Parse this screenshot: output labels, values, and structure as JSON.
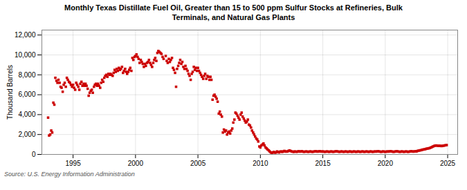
{
  "chart_data": {
    "type": "scatter",
    "title": "Monthly Texas Distillate Fuel Oil, Greater than 15 to 500 ppm Sulfur Stocks at Refineries, Bulk\nTerminals, and Natural Gas Plants",
    "ylabel": "Thousand Barrels",
    "source": "Source: U.S. Energy Information Administration",
    "color": "#cc0000",
    "marker": "square",
    "grid": true,
    "xlim": [
      1992.5,
      2025.8
    ],
    "ylim": [
      0,
      12500
    ],
    "xticks": [
      1995,
      2000,
      2005,
      2010,
      2015,
      2020,
      2025
    ],
    "yticks": [
      0,
      {
        "value": 2000,
        "label": "2,000"
      },
      {
        "value": 4000,
        "label": "4,000"
      },
      {
        "value": 6000,
        "label": "6,000"
      },
      {
        "value": 8000,
        "label": "8,000"
      },
      {
        "value": 10000,
        "label": "10,000"
      },
      {
        "value": 12000,
        "label": "12,000"
      }
    ],
    "x": [
      1993.0,
      1993.08,
      1993.17,
      1993.25,
      1993.33,
      1993.42,
      1993.5,
      1993.58,
      1993.67,
      1993.75,
      1993.83,
      1993.92,
      1994.0,
      1994.08,
      1994.17,
      1994.25,
      1994.33,
      1994.42,
      1994.5,
      1994.58,
      1994.67,
      1994.75,
      1994.83,
      1994.92,
      1995.0,
      1995.08,
      1995.17,
      1995.25,
      1995.33,
      1995.42,
      1995.5,
      1995.58,
      1995.67,
      1995.75,
      1995.83,
      1995.92,
      1996.0,
      1996.08,
      1996.17,
      1996.25,
      1996.33,
      1996.42,
      1996.5,
      1996.58,
      1996.67,
      1996.75,
      1996.83,
      1996.92,
      1997.0,
      1997.08,
      1997.17,
      1997.25,
      1997.33,
      1997.42,
      1997.5,
      1997.58,
      1997.67,
      1997.75,
      1997.83,
      1997.92,
      1998.0,
      1998.08,
      1998.17,
      1998.25,
      1998.33,
      1998.42,
      1998.5,
      1998.58,
      1998.67,
      1998.75,
      1998.83,
      1998.92,
      1999.0,
      1999.08,
      1999.17,
      1999.25,
      1999.33,
      1999.42,
      1999.5,
      1999.58,
      1999.67,
      1999.75,
      1999.83,
      1999.92,
      2000.0,
      2000.08,
      2000.17,
      2000.25,
      2000.33,
      2000.42,
      2000.5,
      2000.58,
      2000.67,
      2000.75,
      2000.83,
      2000.92,
      2001.0,
      2001.08,
      2001.17,
      2001.25,
      2001.33,
      2001.42,
      2001.5,
      2001.58,
      2001.67,
      2001.75,
      2001.83,
      2001.92,
      2002.0,
      2002.08,
      2002.17,
      2002.25,
      2002.42,
      2002.5,
      2002.58,
      2002.67,
      2002.75,
      2002.83,
      2002.92,
      2003.0,
      2003.08,
      2003.17,
      2003.25,
      2003.33,
      2003.42,
      2003.5,
      2003.58,
      2003.67,
      2003.75,
      2003.83,
      2003.92,
      2004.0,
      2004.08,
      2004.17,
      2004.25,
      2004.33,
      2004.42,
      2004.5,
      2004.58,
      2004.67,
      2004.75,
      2004.83,
      2004.92,
      2005.0,
      2005.08,
      2005.17,
      2005.25,
      2005.33,
      2005.42,
      2005.5,
      2005.58,
      2005.67,
      2005.75,
      2005.83,
      2005.92,
      2006.0,
      2006.08,
      2006.17,
      2006.25,
      2006.33,
      2006.42,
      2006.5,
      2006.58,
      2006.67,
      2006.75,
      2006.83,
      2006.92,
      2007.0,
      2007.08,
      2007.17,
      2007.25,
      2007.33,
      2007.42,
      2007.5,
      2007.58,
      2007.67,
      2007.75,
      2007.83,
      2007.92,
      2008.0,
      2008.08,
      2008.17,
      2008.25,
      2008.33,
      2008.42,
      2008.5,
      2008.58,
      2008.67,
      2008.75,
      2008.83,
      2008.92,
      2009.0,
      2009.08,
      2009.17,
      2009.25,
      2009.33,
      2009.42,
      2009.5,
      2009.58,
      2009.67,
      2009.75,
      2009.83,
      2009.92,
      2010.0,
      2010.08,
      2010.17,
      2010.25,
      2010.33,
      2010.42,
      2010.5,
      2010.58,
      2010.67,
      2010.75,
      2010.83,
      2010.92,
      2011.0,
      2011.08,
      2011.17,
      2011.25,
      2011.33,
      2011.42,
      2011.5,
      2011.58,
      2011.67,
      2011.75,
      2011.83,
      2011.92,
      2012.0,
      2012.08,
      2012.17,
      2012.25,
      2012.33,
      2012.42,
      2012.5,
      2012.58,
      2012.67,
      2012.75,
      2012.83,
      2012.92,
      2013.0,
      2013.08,
      2013.17,
      2013.25,
      2013.33,
      2013.42,
      2013.5,
      2013.58,
      2013.67,
      2013.75,
      2013.83,
      2013.92,
      2014.0,
      2014.08,
      2014.17,
      2014.25,
      2014.33,
      2014.42,
      2014.5,
      2014.58,
      2014.67,
      2014.75,
      2014.83,
      2014.92,
      2015.0,
      2015.08,
      2015.17,
      2015.25,
      2015.33,
      2015.42,
      2015.5,
      2015.58,
      2015.67,
      2015.75,
      2015.83,
      2015.92,
      2016.0,
      2016.08,
      2016.17,
      2016.25,
      2016.33,
      2016.42,
      2016.5,
      2016.58,
      2016.67,
      2016.75,
      2016.83,
      2016.92,
      2017.0,
      2017.08,
      2017.17,
      2017.25,
      2017.33,
      2017.42,
      2017.5,
      2017.58,
      2017.67,
      2017.75,
      2017.83,
      2017.92,
      2018.0,
      2018.08,
      2018.17,
      2018.25,
      2018.33,
      2018.42,
      2018.5,
      2018.58,
      2018.67,
      2018.75,
      2018.83,
      2018.92,
      2019.0,
      2019.08,
      2019.17,
      2019.25,
      2019.33,
      2019.42,
      2019.5,
      2019.58,
      2019.67,
      2019.75,
      2019.83,
      2019.92,
      2020.0,
      2020.08,
      2020.17,
      2020.25,
      2020.33,
      2020.42,
      2020.5,
      2020.58,
      2020.67,
      2020.75,
      2020.83,
      2020.92,
      2021.0,
      2021.08,
      2021.17,
      2021.25,
      2021.33,
      2021.42,
      2021.5,
      2021.58,
      2021.67,
      2021.75,
      2021.83,
      2021.92,
      2022.0,
      2022.08,
      2022.17,
      2022.25,
      2022.33,
      2022.42,
      2022.5,
      2022.58,
      2022.67,
      2022.75,
      2022.83,
      2022.92,
      2023.0,
      2023.08,
      2023.17,
      2023.25,
      2023.33,
      2023.42,
      2023.5,
      2023.58,
      2023.67,
      2023.75,
      2023.83,
      2023.92,
      2024.0,
      2024.08,
      2024.17,
      2024.25,
      2024.33,
      2024.42,
      2024.5,
      2024.58,
      2024.67,
      2024.75,
      2024.83,
      2024.92
    ],
    "values": [
      3700,
      1900,
      2000,
      2400,
      2200,
      5200,
      5000,
      7700,
      7400,
      7200,
      7500,
      7200,
      6800,
      6700,
      6300,
      7000,
      7200,
      6800,
      7700,
      7500,
      7300,
      7200,
      7000,
      6800,
      7000,
      6700,
      6500,
      7200,
      7000,
      6800,
      6500,
      7100,
      7300,
      6900,
      7100,
      6900,
      7100,
      6900,
      6600,
      5900,
      6200,
      6400,
      6500,
      6200,
      6800,
      7000,
      7100,
      6900,
      7100,
      6900,
      6700,
      7200,
      7500,
      7300,
      7700,
      7900,
      8000,
      7800,
      8100,
      8000,
      8100,
      8000,
      7900,
      8200,
      8500,
      8300,
      8600,
      8400,
      8700,
      8500,
      8600,
      8800,
      8200,
      8400,
      8600,
      8300,
      8100,
      8300,
      8500,
      8700,
      8400,
      9700,
      9500,
      9800,
      9900,
      10050,
      9800,
      9600,
      9200,
      9500,
      9300,
      9100,
      8800,
      9100,
      8900,
      9200,
      9300,
      9500,
      9200,
      9000,
      8800,
      9200,
      9500,
      9700,
      9400,
      10200,
      10400,
      10300,
      10200,
      10100,
      9800,
      9600,
      9900,
      9400,
      9200,
      9600,
      9300,
      9500,
      9700,
      8700,
      8500,
      8200,
      6800,
      8600,
      8900,
      9200,
      9500,
      9100,
      9300,
      8800,
      8600,
      8900,
      8600,
      8400,
      8100,
      7900,
      7500,
      8100,
      8300,
      8800,
      8500,
      8700,
      8400,
      8700,
      8400,
      8200,
      8000,
      7800,
      7600,
      7900,
      8100,
      7600,
      7900,
      7800,
      7500,
      7800,
      7500,
      5500,
      5900,
      6000,
      5800,
      5600,
      5300,
      4100,
      4300,
      4000,
      3800,
      2200,
      2500,
      2300,
      2400,
      2000,
      2200,
      2300,
      2100,
      2400,
      2600,
      3200,
      3500,
      4200,
      4100,
      3900,
      3700,
      3500,
      4000,
      4200,
      3800,
      3600,
      3400,
      3200,
      3300,
      3500,
      3000,
      2900,
      2700,
      2400,
      2200,
      2000,
      1800,
      1600,
      1500,
      1300,
      800,
      700,
      900,
      1000,
      1100,
      900,
      700,
      600,
      500,
      400,
      300,
      200,
      150,
      200,
      250,
      180,
      200,
      300,
      250,
      200,
      280,
      300,
      250,
      300,
      350,
      300,
      280,
      300,
      350,
      400,
      350,
      300,
      280,
      250,
      300,
      280,
      260,
      300,
      320,
      280,
      300,
      320,
      280,
      260,
      280,
      300,
      280,
      260,
      280,
      300,
      280,
      260,
      280,
      300,
      320,
      300,
      280,
      300,
      320,
      300,
      280,
      300,
      280,
      260,
      280,
      300,
      280,
      260,
      280,
      300,
      280,
      260,
      280,
      300,
      320,
      300,
      280,
      260,
      280,
      300,
      280,
      260,
      280,
      300,
      280,
      260,
      280,
      300,
      280,
      260,
      280,
      300,
      280,
      260,
      280,
      300,
      280,
      260,
      280,
      300,
      280,
      260,
      280,
      300,
      280,
      260,
      280,
      300,
      280,
      260,
      280,
      300,
      280,
      300,
      320,
      300,
      280,
      260,
      280,
      300,
      280,
      260,
      280,
      300,
      280,
      300,
      320,
      300,
      280,
      260,
      280,
      300,
      320,
      300,
      280,
      260,
      280,
      300,
      280,
      260,
      280,
      300,
      280,
      260,
      280,
      300,
      320,
      300,
      280,
      300,
      320,
      300,
      350,
      380,
      400,
      420,
      450,
      480,
      500,
      520,
      550,
      580,
      600,
      620,
      650,
      700,
      750,
      800,
      850,
      880,
      900,
      880,
      860,
      880,
      860,
      840,
      860,
      880,
      900,
      920,
      940
    ]
  }
}
